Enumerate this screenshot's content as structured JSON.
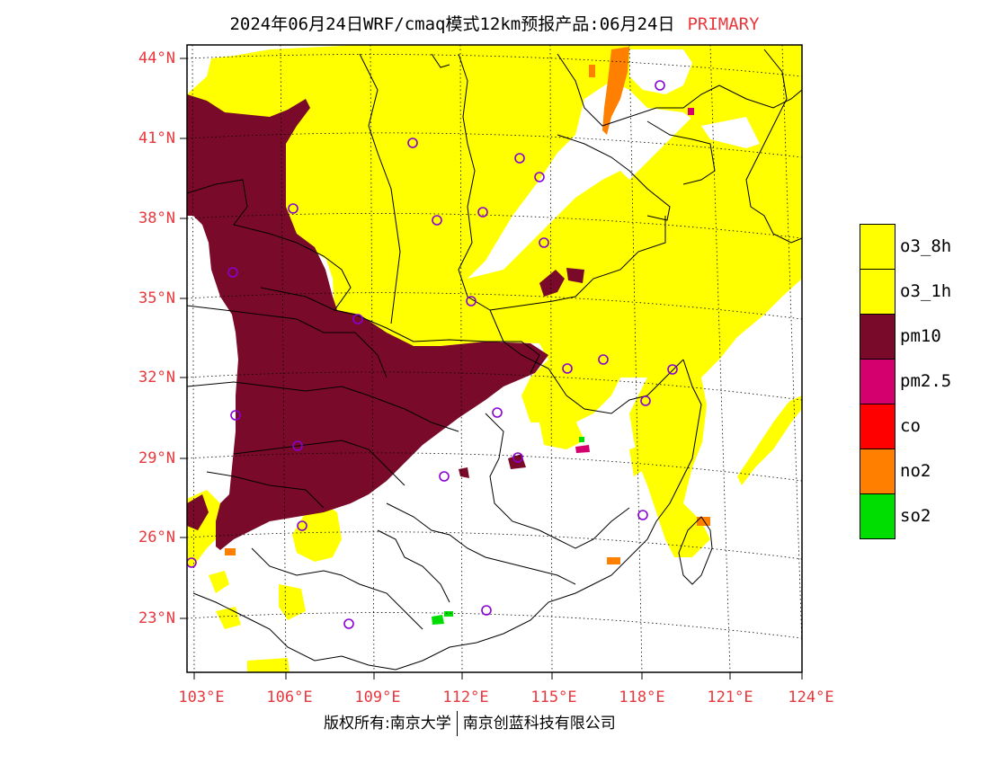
{
  "title": {
    "main": "2024年06月24日WRF/cmaq模式12km预报产品:06月24日",
    "tag": "PRIMARY"
  },
  "lat_labels": [
    "44°N",
    "41°N",
    "38°N",
    "35°N",
    "32°N",
    "29°N",
    "26°N",
    "23°N"
  ],
  "lon_labels": [
    "103°E",
    "106°E",
    "109°E",
    "112°E",
    "115°E",
    "118°E",
    "121°E",
    "124°E"
  ],
  "legend": [
    {
      "label": "o3_8h",
      "color": "#ffff00"
    },
    {
      "label": "o3_1h",
      "color": "#ffff00"
    },
    {
      "label": "pm10",
      "color": "#7a0a2a"
    },
    {
      "label": "pm2.5",
      "color": "#d4006e"
    },
    {
      "label": "co",
      "color": "#ff0000"
    },
    {
      "label": "no2",
      "color": "#ff7f00"
    },
    {
      "label": "so2",
      "color": "#00dd00"
    }
  ],
  "footer": {
    "left": "版权所有:南京大学",
    "right": "南京创蓝科技有限公司"
  },
  "colors": {
    "axis_label": "#e8383d",
    "station_marker": "#8a00d4"
  }
}
